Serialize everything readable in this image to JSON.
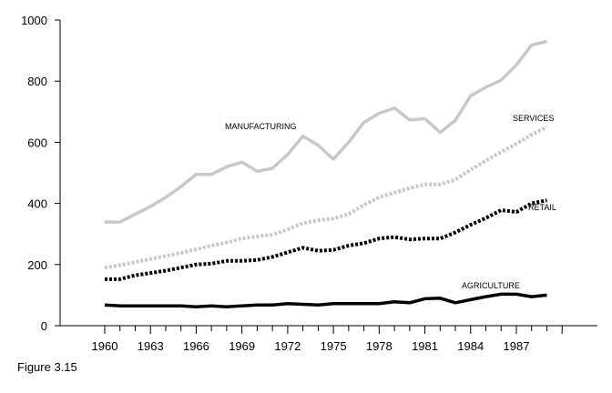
{
  "chart_data": {
    "type": "line",
    "title": "",
    "xlabel": "",
    "ylabel": "",
    "ylim": [
      0,
      1000
    ],
    "yticks": [
      "0",
      "200",
      "400",
      "600",
      "800",
      "1000"
    ],
    "xticks": [
      "1960",
      "1963",
      "1966",
      "1969",
      "1972",
      "1975",
      "1978",
      "1981",
      "1984",
      "1987"
    ],
    "x": [
      1960,
      1961,
      1962,
      1963,
      1964,
      1965,
      1966,
      1967,
      1968,
      1969,
      1970,
      1971,
      1972,
      1973,
      1974,
      1975,
      1976,
      1977,
      1978,
      1979,
      1980,
      1981,
      1982,
      1983,
      1984,
      1985,
      1986,
      1987,
      1988,
      1989
    ],
    "series": [
      {
        "name": "MANUFACTURING",
        "color": "#c8c8c8",
        "style": "solid",
        "values": [
          339,
          339,
          365,
          390,
          420,
          455,
          495,
          495,
          520,
          535,
          505,
          515,
          560,
          620,
          590,
          545,
          600,
          665,
          695,
          712,
          673,
          677,
          632,
          672,
          752,
          780,
          803,
          853,
          918,
          930
        ]
      },
      {
        "name": "SERVICES",
        "color": "#c8c8c8",
        "style": "dotted",
        "values": [
          190,
          198,
          208,
          218,
          228,
          238,
          250,
          262,
          272,
          285,
          292,
          298,
          315,
          335,
          345,
          350,
          365,
          395,
          420,
          435,
          450,
          462,
          462,
          478,
          510,
          540,
          568,
          595,
          625,
          650
        ]
      },
      {
        "name": "RETAIL",
        "color": "#000000",
        "style": "dotted",
        "values": [
          152,
          152,
          165,
          172,
          180,
          190,
          200,
          203,
          212,
          212,
          215,
          225,
          240,
          255,
          245,
          248,
          262,
          270,
          285,
          290,
          282,
          285,
          285,
          305,
          330,
          352,
          378,
          372,
          400,
          410
        ]
      },
      {
        "name": "AGRICULTURE",
        "color": "#000000",
        "style": "solid",
        "values": [
          68,
          65,
          65,
          65,
          65,
          65,
          62,
          65,
          62,
          65,
          68,
          68,
          72,
          70,
          68,
          72,
          72,
          72,
          72,
          78,
          75,
          88,
          90,
          75,
          85,
          95,
          103,
          103,
          95,
          100
        ]
      }
    ],
    "grid": false,
    "caption": "Figure 3.15"
  }
}
